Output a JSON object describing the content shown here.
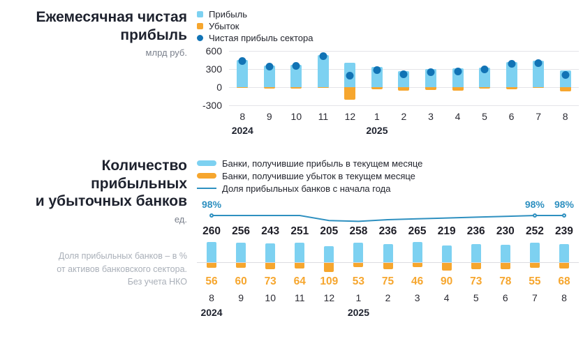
{
  "chart_data": [
    {
      "type": "bar",
      "title": "Ежемесячная чистая прибыль",
      "title_lines": [
        "Ежемесячная чистая",
        "прибыль"
      ],
      "unit_label": "млрд руб.",
      "categories": [
        "8",
        "9",
        "10",
        "11",
        "12",
        "1",
        "2",
        "3",
        "4",
        "5",
        "6",
        "7",
        "8"
      ],
      "year_row": [
        "2024",
        "",
        "",
        "",
        "",
        "2025",
        "",
        "",
        "",
        "",
        "",
        "",
        ""
      ],
      "yticks": [
        600,
        300,
        0,
        -300
      ],
      "ylim": [
        -300,
        600
      ],
      "grid": true,
      "legend_position": "top",
      "series": [
        {
          "name": "Прибыль",
          "color": "#7dd1f1",
          "type": "bar",
          "values": [
            455,
            360,
            370,
            530,
            400,
            330,
            270,
            295,
            315,
            320,
            420,
            435,
            275
          ]
        },
        {
          "name": "Убыток",
          "color": "#f6a62e",
          "type": "bar",
          "values": [
            -15,
            -25,
            -20,
            -10,
            -213,
            -35,
            -55,
            -50,
            -55,
            -25,
            -30,
            -15,
            -70
          ]
        },
        {
          "name": "Чистая прибыль сектора",
          "color": "#1173b5",
          "type": "point",
          "values": [
            435,
            336,
            348,
            518,
            187,
            286,
            214,
            244,
            261,
            296,
            392,
            397,
            203
          ]
        }
      ]
    },
    {
      "type": "bar+line",
      "title": "Количество прибыльных и убыточных банков",
      "title_lines": [
        "Количество",
        "прибыльных",
        "и убыточных банков"
      ],
      "unit_label": "ед.",
      "note_lines": [
        "Доля прибыльных банков – в %",
        "от активов банковского сектора.",
        "Без учета НКО"
      ],
      "categories": [
        "8",
        "9",
        "10",
        "11",
        "12",
        "1",
        "2",
        "3",
        "4",
        "5",
        "6",
        "7",
        "8"
      ],
      "year_row": [
        "2024",
        "",
        "",
        "",
        "",
        "2025",
        "",
        "",
        "",
        "",
        "",
        "",
        ""
      ],
      "legend_position": "top",
      "series": [
        {
          "name": "Банки, получившие прибыль в текущем месяце",
          "color": "#7dd1f1",
          "type": "bar",
          "values": [
            260,
            256,
            243,
            251,
            205,
            258,
            236,
            265,
            219,
            236,
            230,
            252,
            239
          ]
        },
        {
          "name": "Банки, получившие убыток в текущем месяце",
          "color": "#f6a62e",
          "type": "bar",
          "values": [
            56,
            60,
            73,
            64,
            109,
            53,
            75,
            46,
            90,
            73,
            78,
            55,
            68
          ]
        },
        {
          "name": "Доля прибыльных банков с начала года",
          "color": "#2e90c0",
          "type": "line",
          "values": [
            98,
            98,
            98,
            98,
            97.4,
            97.3,
            97.5,
            97.6,
            97.7,
            97.8,
            97.9,
            98,
            98
          ],
          "marker_indices": [
            0,
            11,
            12
          ],
          "point_labels": {
            "0": "98%",
            "11": "98%",
            "12": "98%"
          }
        }
      ]
    }
  ],
  "colors": {
    "profit_blue": "#7dd1f1",
    "loss_orange": "#f6a62e",
    "net_dot_blue": "#1173b5",
    "share_line_teal": "#2e90c0",
    "grid_gray": "#e4e4e8",
    "baseline_gray": "#dcdce0"
  }
}
